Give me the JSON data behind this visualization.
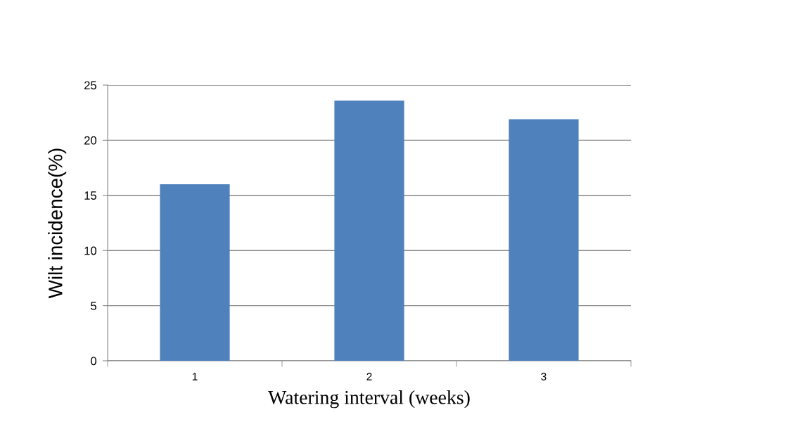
{
  "chart_data": {
    "type": "bar",
    "xlabel": "Watering interval (weeks)",
    "ylabel": "Wilt incidence(%)",
    "categories": [
      "1",
      "2",
      "3"
    ],
    "values": [
      16,
      23.6,
      21.9
    ],
    "color": "#4f81bd",
    "ylim": [
      0,
      25
    ],
    "yticks": [
      0,
      5,
      10,
      15,
      20,
      25
    ],
    "grid": "y",
    "legend": false
  }
}
